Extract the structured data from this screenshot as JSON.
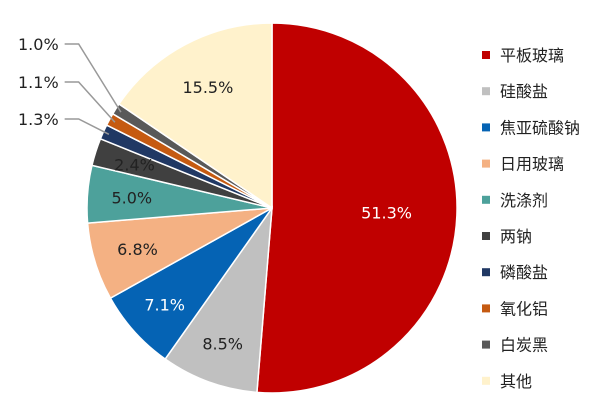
{
  "chart_data": {
    "type": "pie",
    "title": "",
    "start": "12 o'clock, clockwise",
    "series": [
      {
        "name": "平板玻璃",
        "value": 51.3,
        "label": "51.3%",
        "color": "#c00000"
      },
      {
        "name": "硅酸盐",
        "value": 8.5,
        "label": "8.5%",
        "color": "#c0c0c0"
      },
      {
        "name": "焦亚硫酸钠",
        "value": 7.1,
        "label": "7.1%",
        "color": "#0563b4"
      },
      {
        "name": "日用玻璃",
        "value": 6.8,
        "label": "6.8%",
        "color": "#f4b183"
      },
      {
        "name": "洗涤剂",
        "value": 5.0,
        "label": "5.0%",
        "color": "#4da19b"
      },
      {
        "name": "两钠",
        "value": 2.4,
        "label": "2.4%",
        "color": "#404040"
      },
      {
        "name": "磷酸盐",
        "value": 1.3,
        "label": "1.3%",
        "color": "#203864"
      },
      {
        "name": "氧化铝",
        "value": 1.1,
        "label": "1.1%",
        "color": "#c55a11"
      },
      {
        "name": "白炭黑",
        "value": 1.0,
        "label": "1.0%",
        "color": "#595959"
      },
      {
        "name": "其他",
        "value": 15.5,
        "label": "15.5%",
        "color": "#fff2cc"
      }
    ],
    "legend_position": "right"
  }
}
